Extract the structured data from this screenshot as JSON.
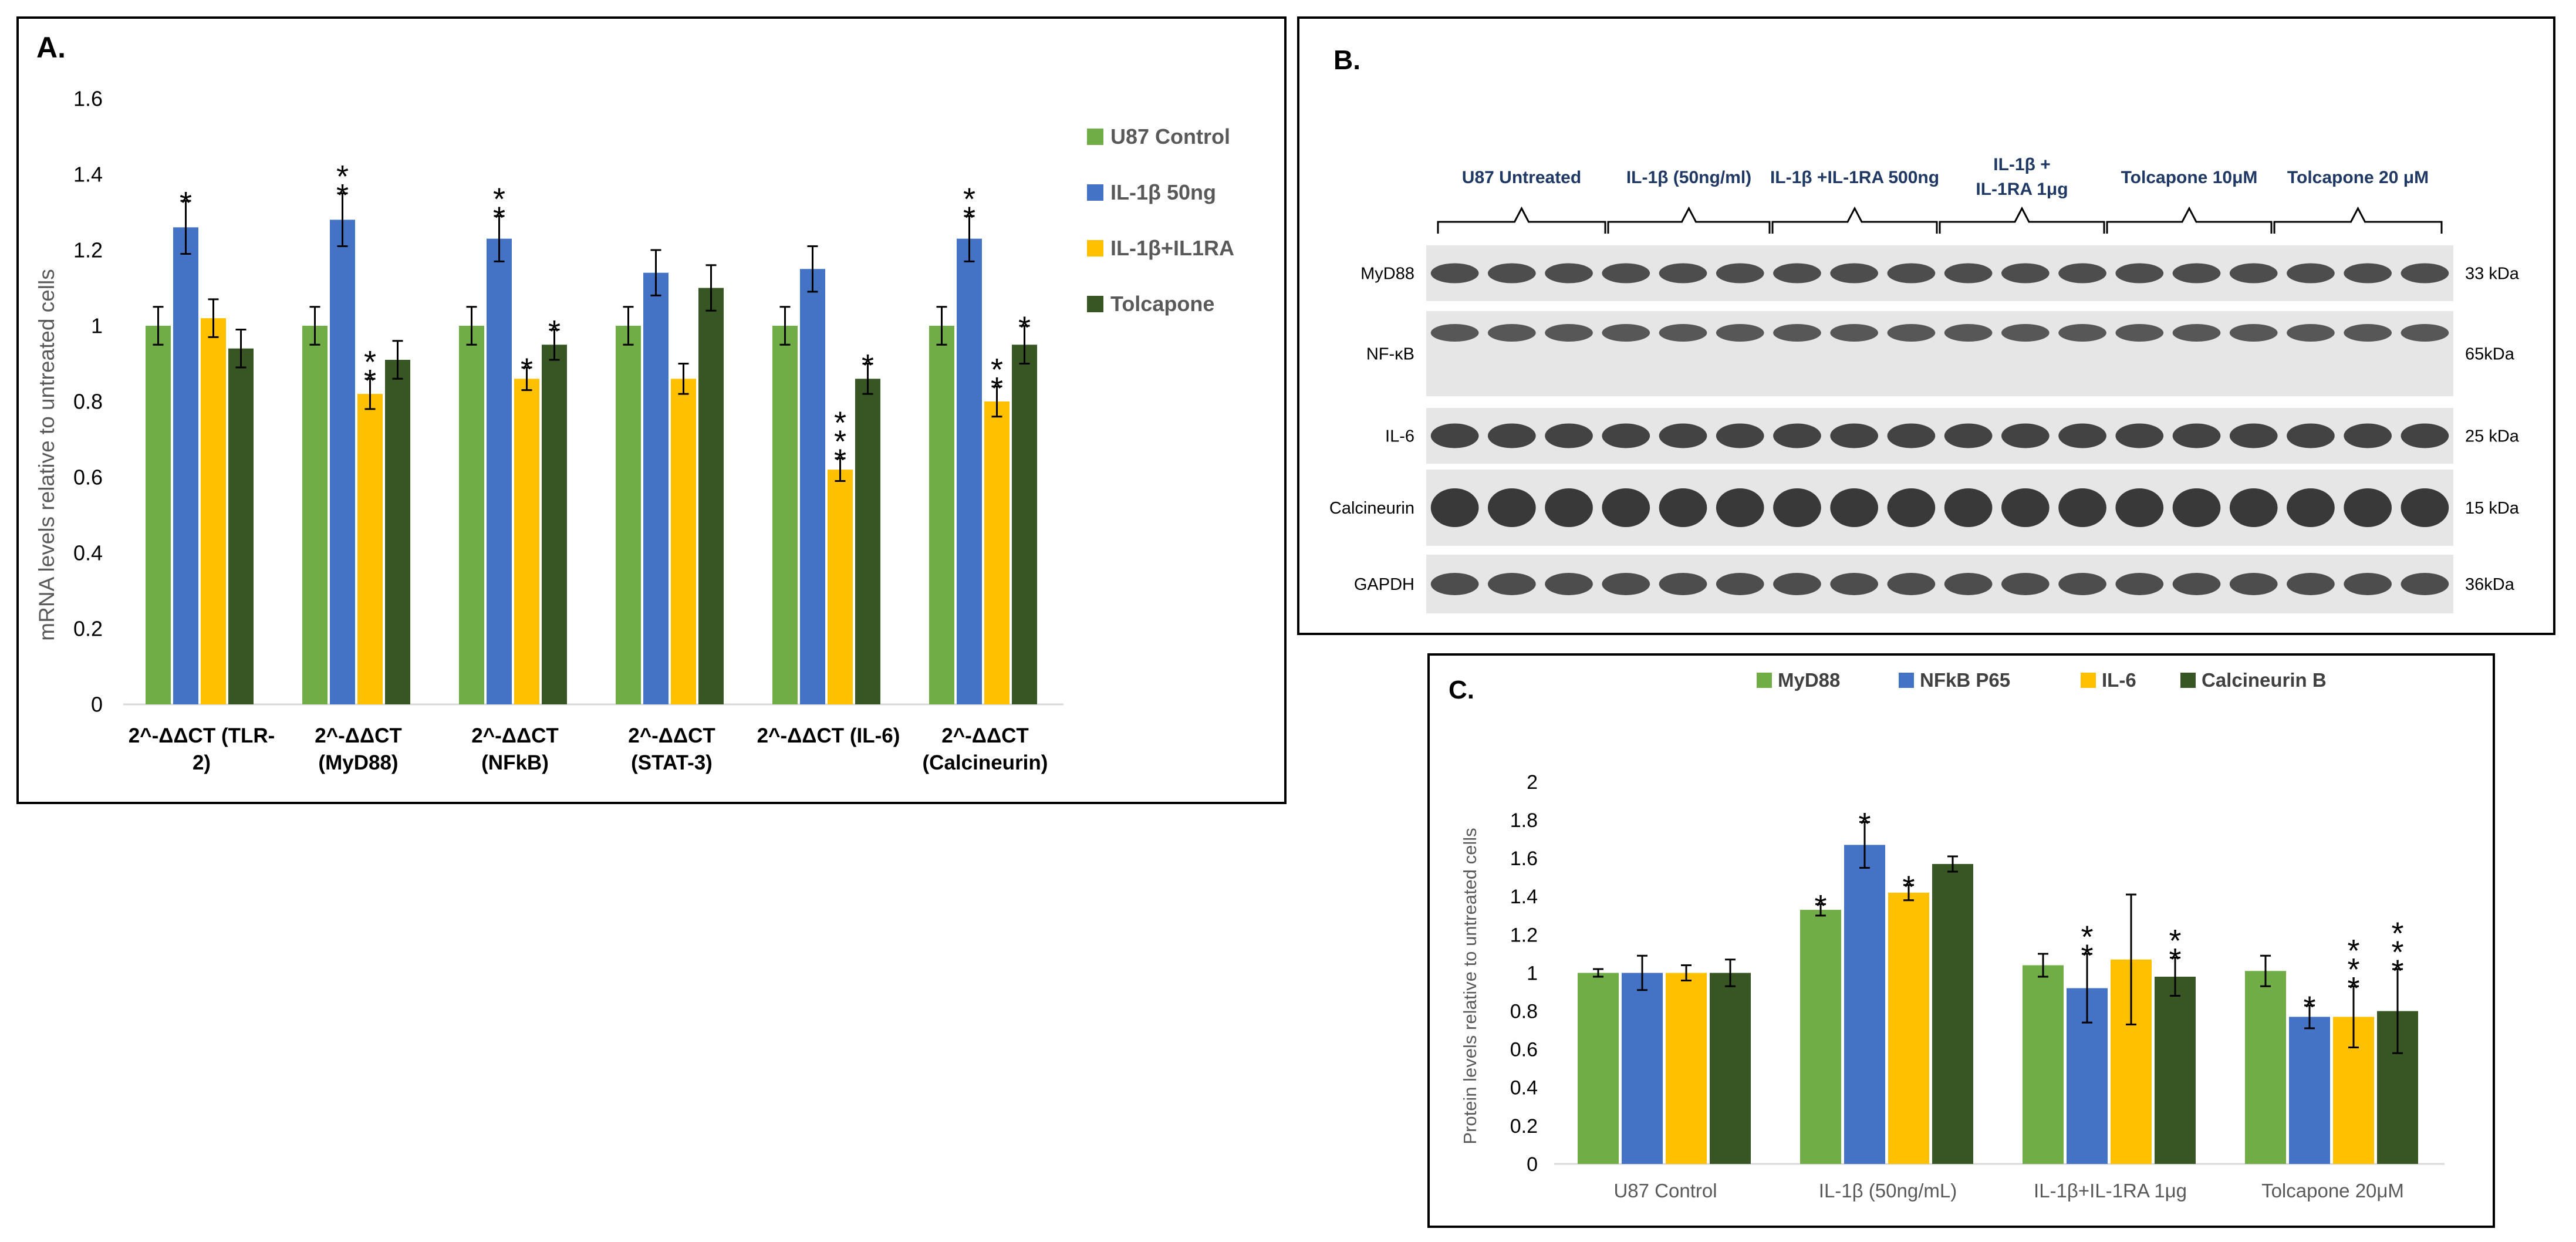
{
  "colors": {
    "light_green": "#70AD47",
    "blue": "#4472C4",
    "yellow": "#FFC000",
    "dark_green": "#375623",
    "axis": "#d9d9d9",
    "text": "#595959",
    "lane_label": "#1f3864"
  },
  "panel_a": {
    "label": "A.",
    "chart_data": {
      "type": "bar",
      "title": "",
      "ylabel": "mRNA levels relative to untreated cells",
      "ylim": [
        0,
        1.6
      ],
      "yticks": [
        "0",
        "0.2",
        "0.4",
        "0.6",
        "0.8",
        "1",
        "1.2",
        "1.4",
        "1.6"
      ],
      "categories": [
        [
          "2^-ΔΔCT (TLR-",
          "2)"
        ],
        [
          "2^-ΔΔCT",
          "(MyD88)"
        ],
        [
          "2^-ΔΔCT",
          "(NFkB)"
        ],
        [
          "2^-ΔΔCT",
          "(STAT-3)"
        ],
        [
          "2^-ΔΔCT (IL-6)"
        ],
        [
          "2^-ΔΔCT",
          "(Calcineurin)"
        ]
      ],
      "series": [
        {
          "name": "U87 Control",
          "color": "#70AD47",
          "values": [
            1,
            1,
            1,
            1,
            1,
            1
          ],
          "errors": [
            0.05,
            0.05,
            0.05,
            0.05,
            0.05,
            0.05
          ],
          "stars": [
            0,
            0,
            0,
            0,
            0,
            0
          ]
        },
        {
          "name": "IL-1β 50ng",
          "color": "#4472C4",
          "values": [
            1.26,
            1.28,
            1.23,
            1.14,
            1.15,
            1.23
          ],
          "errors": [
            0.07,
            0.07,
            0.06,
            0.06,
            0.06,
            0.06
          ],
          "stars": [
            1,
            2,
            2,
            0,
            0,
            2
          ]
        },
        {
          "name": "IL-1β+IL1RA",
          "color": "#FFC000",
          "values": [
            1.02,
            0.82,
            0.86,
            0.86,
            0.62,
            0.8
          ],
          "errors": [
            0.05,
            0.04,
            0.03,
            0.04,
            0.03,
            0.04
          ],
          "stars": [
            0,
            2,
            1,
            0,
            3,
            2
          ]
        },
        {
          "name": "Tolcapone",
          "color": "#375623",
          "values": [
            0.94,
            0.91,
            0.95,
            1.1,
            0.86,
            0.95
          ],
          "errors": [
            0.05,
            0.05,
            0.04,
            0.06,
            0.04,
            0.05
          ],
          "stars": [
            0,
            0,
            1,
            0,
            1,
            1
          ]
        }
      ],
      "legend_position": "right"
    }
  },
  "panel_b": {
    "label": "B.",
    "lane_groups": [
      [
        "U87 Untreated"
      ],
      [
        "IL-1β (50ng/ml)"
      ],
      [
        "IL-1β +IL-1RA 500ng"
      ],
      [
        "IL-1β +",
        "IL-1RA 1μg"
      ],
      [
        "Tolcapone 10μM"
      ],
      [
        "Tolcapone 20 μM"
      ]
    ],
    "blots": [
      {
        "protein": "MyD88",
        "size": "33 kDa"
      },
      {
        "protein": "NF-κB",
        "size": "65kDa"
      },
      {
        "protein": "IL-6",
        "size": "25 kDa"
      },
      {
        "protein": "Calcineurin",
        "size": "15 kDa"
      },
      {
        "protein": "GAPDH",
        "size": "36kDa"
      }
    ]
  },
  "panel_c": {
    "label": "C.",
    "chart_data": {
      "type": "bar",
      "title": "",
      "ylabel": "Protein levels relative to untreated cells",
      "ylim": [
        0,
        2
      ],
      "yticks": [
        "0",
        "0.2",
        "0.4",
        "0.6",
        "0.8",
        "1",
        "1.2",
        "1.4",
        "1.6",
        "1.8",
        "2"
      ],
      "categories": [
        [
          "U87 Control"
        ],
        [
          "IL-1β (50ng/mL)"
        ],
        [
          "IL-1β+IL-1RA 1μg"
        ],
        [
          "Tolcapone 20μM"
        ]
      ],
      "series": [
        {
          "name": "MyD88",
          "color": "#70AD47",
          "values": [
            1.0,
            1.33,
            1.04,
            1.01
          ],
          "errors": [
            0.02,
            0.03,
            0.06,
            0.08
          ],
          "stars": [
            0,
            1,
            0,
            0
          ]
        },
        {
          "name": "NFkB P65",
          "color": "#4472C4",
          "values": [
            1.0,
            1.67,
            0.92,
            0.77
          ],
          "errors": [
            0.09,
            0.12,
            0.18,
            0.06
          ],
          "stars": [
            0,
            1,
            2,
            1
          ]
        },
        {
          "name": "IL-6",
          "color": "#FFC000",
          "values": [
            1.0,
            1.42,
            1.07,
            0.77
          ],
          "errors": [
            0.04,
            0.04,
            0.34,
            0.16
          ],
          "stars": [
            0,
            1,
            0,
            3
          ]
        },
        {
          "name": "Calcineurin B",
          "color": "#375623",
          "values": [
            1.0,
            1.57,
            0.98,
            0.8
          ],
          "errors": [
            0.07,
            0.04,
            0.1,
            0.22
          ],
          "stars": [
            0,
            0,
            2,
            3
          ]
        }
      ],
      "legend_position": "top"
    }
  }
}
